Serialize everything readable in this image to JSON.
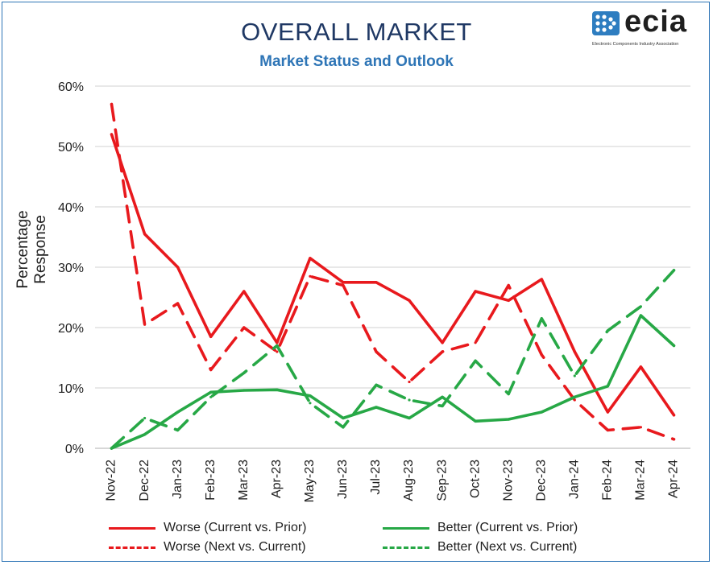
{
  "title": "OVERALL MARKET",
  "subtitle": "Market Status and Outlook",
  "logo": {
    "name": "ecia",
    "tagline": "Electronic Components Industry Association"
  },
  "colors": {
    "red": "#e8191d",
    "green": "#27a846",
    "title": "#1f3864",
    "subtitle": "#2e75b6",
    "frame": "#2e75b6"
  },
  "chart_data": {
    "type": "line",
    "ylabel": "Percentage Response",
    "xlabel": "",
    "ylim": [
      0,
      60
    ],
    "yticks": [
      "0%",
      "10%",
      "20%",
      "30%",
      "40%",
      "50%",
      "60%"
    ],
    "grid": true,
    "legend_position": "bottom",
    "categories": [
      "Nov-22",
      "Dec-22",
      "Jan-23",
      "Feb-23",
      "Mar-23",
      "Apr-23",
      "May-23",
      "Jun-23",
      "Jul-23",
      "Aug-23",
      "Sep-23",
      "Oct-23",
      "Nov-23",
      "Dec-23",
      "Jan-24",
      "Feb-24",
      "Mar-24",
      "Apr-24"
    ],
    "series": [
      {
        "name": "Worse (Current vs. Prior)",
        "color": "#e8191d",
        "style": "solid",
        "values": [
          52,
          35.5,
          30,
          18.5,
          26,
          17.5,
          31.5,
          27.5,
          27.5,
          24.5,
          17.5,
          26,
          24.5,
          28,
          16,
          6,
          13.5,
          5.5
        ]
      },
      {
        "name": "Worse (Next vs. Current)",
        "color": "#e8191d",
        "style": "dashed",
        "values": [
          57,
          20.5,
          24,
          13,
          20,
          16,
          28.5,
          27,
          16,
          11,
          16,
          17.5,
          27,
          15.5,
          8,
          3,
          3.5,
          1.5
        ]
      },
      {
        "name": "Better (Current vs. Prior)",
        "color": "#27a846",
        "style": "solid",
        "values": [
          0,
          2.3,
          6,
          9.3,
          9.6,
          9.7,
          8.7,
          5,
          6.8,
          5,
          8.5,
          4.5,
          4.8,
          6,
          8.5,
          10.3,
          22,
          17
        ]
      },
      {
        "name": "Better (Next vs. Current)",
        "color": "#27a846",
        "style": "dashed",
        "values": [
          0,
          5,
          3,
          8.5,
          12.5,
          17,
          7.5,
          3.5,
          10.5,
          8,
          7,
          14.5,
          9,
          21.5,
          12,
          19.5,
          23.5,
          29.5
        ]
      }
    ]
  }
}
